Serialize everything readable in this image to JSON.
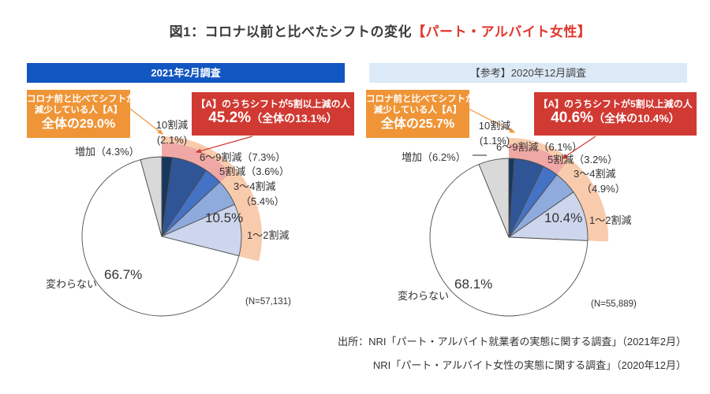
{
  "title": {
    "prefix": "図1：コロナ以前と比べたシフトの変化",
    "highlight": "【パート・アルバイト女性】"
  },
  "panels": [
    {
      "banner": "2021年2月調査",
      "orange_box": {
        "line1": "コロナ前と比べてシフトが",
        "line2": "減少している人【A】",
        "line3": "全体の29.0%"
      },
      "red_box": {
        "line1": "【A】のうちシフトが5割以上減の人",
        "value": "45.2%",
        "suffix": "（全体の13.1%）"
      },
      "labels": {
        "increase": "増加（4.3%）",
        "dec10_line1": "10割減",
        "dec10_line2": "(2.1%)",
        "dec6_9": "6〜9割減（7.3%）",
        "dec5": "5割減（3.6%）",
        "dec3_4_line1": "3〜4割減",
        "dec3_4_line2": "（5.4%）",
        "dec1_2_value": "10.5%",
        "dec1_2": "1〜2割減",
        "unchanged": "変わらない",
        "unchanged_value": "66.7%"
      },
      "n_label": "(N=57,131)"
    },
    {
      "banner": "【参考】2020年12月調査",
      "orange_box": {
        "line1": "コロナ前と比べてシフトが",
        "line2": "減少している人【A】",
        "line3": "全体の25.7%"
      },
      "red_box": {
        "line1": "【A】のうちシフトが5割以上減の人",
        "value": "40.6%",
        "suffix": "（全体の10.4%）"
      },
      "labels": {
        "increase": "増加（6.2%）",
        "dec10_line1": "10割減",
        "dec10_line2": "(1.1%)",
        "dec6_9": "6〜9割減（6.1%）",
        "dec5": "5割減（3.2%）",
        "dec3_4_line1": "3〜4割減",
        "dec3_4_line2": "（4.9%）",
        "dec1_2_value": "10.4%",
        "dec1_2": "1〜2割減",
        "unchanged": "変わらない",
        "unchanged_value": "68.1%"
      },
      "n_label": "(N=55,889)"
    }
  ],
  "source": {
    "line1": "出所：NRI「パート・アルバイト就業者の実態に関する調査」（2021年2月）",
    "line2": "NRI「パート・アルバイト女性の実態に関する調査」（2020年12月）"
  },
  "colors": {
    "banner_blue": "#1256c2",
    "banner_light_blue": "#dce9f6",
    "callout_orange": "#ef9537",
    "callout_red": "#d03a33",
    "band_reduced_peach": "#f8cbad",
    "band_severe_pink": "#efa8a5",
    "title_highlight_red": "#e0382e"
  },
  "chart_data": [
    {
      "type": "pie",
      "title": "2021年2月調査",
      "unit": "%",
      "n": 57131,
      "order": "clockwise-from-12-o'clock",
      "categories": [
        "10割減",
        "6〜9割減",
        "5割減",
        "3〜4割減",
        "1〜2割減",
        "変わらない",
        "増加"
      ],
      "values": [
        2.1,
        7.3,
        3.6,
        5.4,
        10.5,
        66.7,
        4.3
      ],
      "colors": [
        "#17375e",
        "#2f5597",
        "#4472c4",
        "#8faadc",
        "#cdd6ec",
        "#ffffff",
        "#d9d9d9"
      ],
      "highlight_bands": [
        {
          "label": "コロナ前と比べてシフトが減少している人【A】",
          "pct_of_total": 29.0,
          "color": "#f8cbad"
        },
        {
          "label": "【A】のうちシフトが5割以上減の人",
          "pct_of_group": 45.2,
          "pct_of_total": 13.1,
          "color": "#efa8a5"
        }
      ]
    },
    {
      "type": "pie",
      "title": "【参考】2020年12月調査",
      "unit": "%",
      "n": 55889,
      "order": "clockwise-from-12-o'clock",
      "categories": [
        "10割減",
        "6〜9割減",
        "5割減",
        "3〜4割減",
        "1〜2割減",
        "変わらない",
        "増加"
      ],
      "values": [
        1.1,
        6.1,
        3.2,
        4.9,
        10.4,
        68.1,
        6.2
      ],
      "colors": [
        "#17375e",
        "#2f5597",
        "#4472c4",
        "#8faadc",
        "#cdd6ec",
        "#ffffff",
        "#d9d9d9"
      ],
      "highlight_bands": [
        {
          "label": "コロナ前と比べてシフトが減少している人【A】",
          "pct_of_total": 25.7,
          "color": "#f8cbad"
        },
        {
          "label": "【A】のうちシフトが5割以上減の人",
          "pct_of_group": 40.6,
          "pct_of_total": 10.4,
          "color": "#efa8a5"
        }
      ]
    }
  ]
}
